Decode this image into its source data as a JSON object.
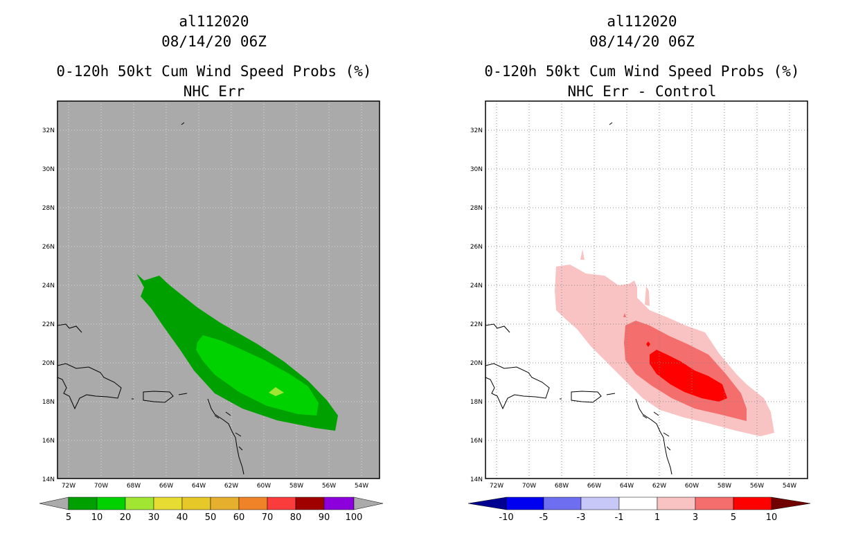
{
  "panels": [
    {
      "storm_id": "al112020",
      "datetime": "08/14/20 06Z",
      "title": "0-120h 50kt Cum Wind Speed Probs (%)",
      "subtitle": "NHC Err",
      "background": "#aaaaaa",
      "colorbar": {
        "labels": [
          "5",
          "10",
          "20",
          "30",
          "40",
          "50",
          "60",
          "70",
          "80",
          "90",
          "100"
        ],
        "colors": [
          "#00a000",
          "#00d200",
          "#a0e632",
          "#e6dc32",
          "#e6c828",
          "#e6af2d",
          "#f08228",
          "#fa3c3c",
          "#a00000",
          "#8c00dc"
        ],
        "under_color": "#aaaaaa",
        "over_color": "#aaaaaa"
      }
    },
    {
      "storm_id": "al112020",
      "datetime": "08/14/20 06Z",
      "title": "0-120h 50kt Cum Wind Speed Probs (%)",
      "subtitle": "NHC Err - Control",
      "background": "#ffffff",
      "colorbar": {
        "labels": [
          "-10",
          "-5",
          "-3",
          "-1",
          "1",
          "3",
          "5",
          "10"
        ],
        "colors": [
          "#0000f0",
          "#6e6ef0",
          "#c8c8f8",
          "#ffffff",
          "#fac3c3",
          "#f56e6e",
          "#ff0000"
        ],
        "under_color": "#000090",
        "over_color": "#700000"
      }
    }
  ],
  "axes": {
    "lon_labels": [
      "72W",
      "70W",
      "68W",
      "66W",
      "64W",
      "62W",
      "60W",
      "58W",
      "56W",
      "54W"
    ],
    "lat_labels": [
      "32N",
      "30N",
      "28N",
      "26N",
      "24N",
      "22N",
      "20N",
      "18N",
      "16N",
      "14N"
    ]
  }
}
